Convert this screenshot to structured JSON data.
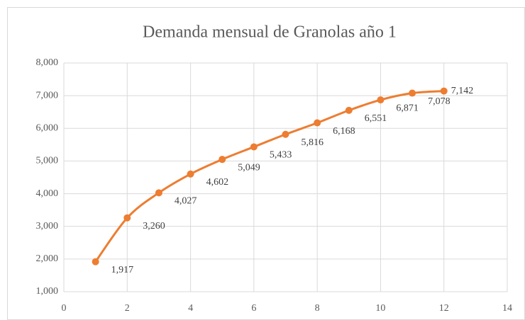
{
  "chart_data": {
    "type": "line",
    "title": "Demanda mensual de Granolas año 1",
    "x": [
      1,
      2,
      3,
      4,
      5,
      6,
      7,
      8,
      9,
      10,
      11,
      12
    ],
    "series": [
      {
        "color": "#ed7d31",
        "values": [
          1917,
          3260,
          4027,
          4602,
          5049,
          5433,
          5816,
          6168,
          6551,
          6871,
          7078,
          7142
        ],
        "value_labels": [
          "1,917",
          "3,260",
          "4,027",
          "4,602",
          "5,049",
          "5,433",
          "5,816",
          "6,168",
          "6,551",
          "6,871",
          "7,078",
          "7,142"
        ]
      }
    ],
    "xlim": [
      0,
      14
    ],
    "xticks": [
      0,
      2,
      4,
      6,
      8,
      10,
      12,
      14
    ],
    "ylim": [
      1000,
      8000
    ],
    "yticks": [
      {
        "value": 1000,
        "label": "1,000"
      },
      {
        "value": 2000,
        "label": "2,000"
      },
      {
        "value": 3000,
        "label": "3,000"
      },
      {
        "value": 4000,
        "label": "4,000"
      },
      {
        "value": 5000,
        "label": "5,000"
      },
      {
        "value": 6000,
        "label": "6,000"
      },
      {
        "value": 7000,
        "label": "7,000"
      },
      {
        "value": 8000,
        "label": "8,000"
      }
    ],
    "grid": true,
    "smooth": true
  }
}
